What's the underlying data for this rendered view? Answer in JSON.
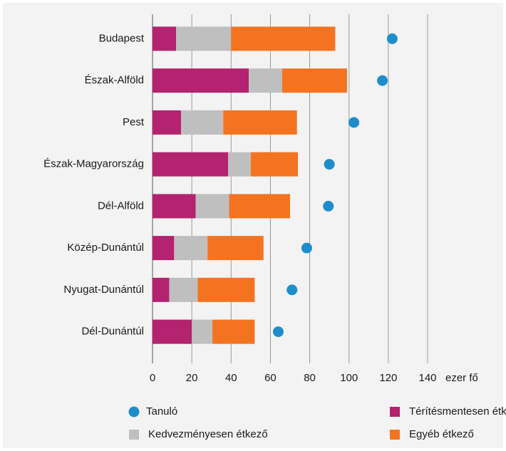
{
  "chart_data": {
    "type": "bar",
    "orientation": "horizontal",
    "stacked": true,
    "categories": [
      "Budapest",
      "Észak-Alföld",
      "Pest",
      "Észak-Magyarország",
      "Dél-Alföld",
      "Közép-Dunántúl",
      "Nyugat-Dunántúl",
      "Dél-Dunántúl"
    ],
    "series": [
      {
        "name": "Tanuló",
        "type": "scatter",
        "color": "#1f8dcc",
        "values": [
          122,
          117,
          102.5,
          90,
          89.5,
          78.5,
          71,
          64
        ]
      },
      {
        "name": "Térítésmentesen étkező",
        "type": "bar",
        "color": "#b3236f",
        "values": [
          12,
          49,
          14.5,
          38.5,
          22,
          11,
          8.5,
          20
        ]
      },
      {
        "name": "Kedvezményesen étkező",
        "type": "bar",
        "color": "#bfbfbf",
        "values": [
          28,
          17,
          21.5,
          11.5,
          17,
          17,
          14.5,
          10.5
        ]
      },
      {
        "name": "Egyéb étkező",
        "type": "bar",
        "color": "#f47321",
        "values": [
          53,
          33,
          37.5,
          24,
          31,
          28.5,
          29,
          21.5
        ]
      }
    ],
    "xlabel": "ezer fő",
    "xlim": [
      0,
      140
    ],
    "xticks": [
      0,
      20,
      40,
      60,
      80,
      100,
      120,
      140
    ],
    "grid": true
  }
}
